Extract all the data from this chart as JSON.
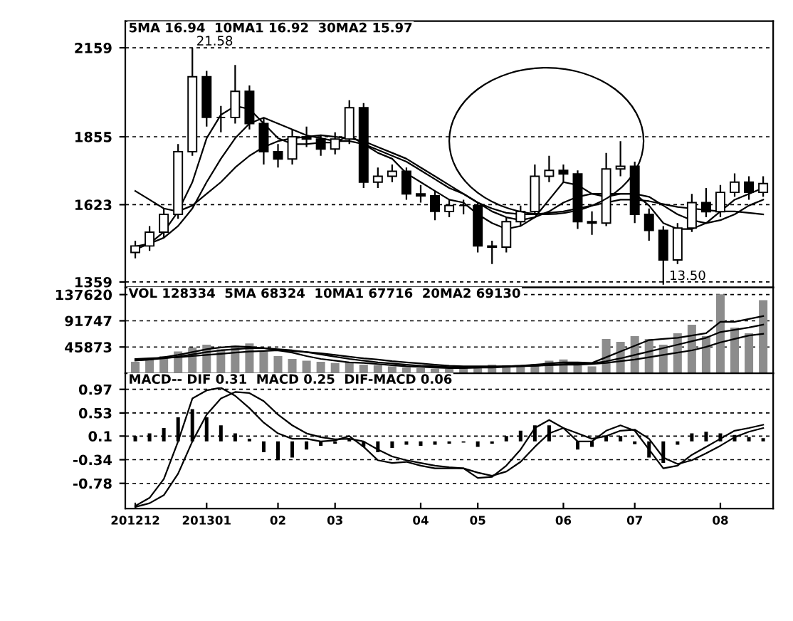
{
  "chart_data": [
    {
      "type": "candlestick",
      "tick_labels": "y",
      "grid": "y",
      "categories": [
        "201212",
        null,
        null,
        null,
        null,
        "201301",
        null,
        null,
        null,
        null,
        "02",
        null,
        null,
        null,
        "03",
        null,
        null,
        null,
        null,
        null,
        "04",
        null,
        null,
        null,
        "05",
        null,
        null,
        null,
        null,
        null,
        "06",
        null,
        null,
        null,
        null,
        "07",
        null,
        null,
        null,
        null,
        null,
        "08",
        null,
        null,
        null
      ],
      "ohlc": [
        [
          1460,
          1500,
          1440,
          1482
        ],
        [
          1482,
          1550,
          1465,
          1529
        ],
        [
          1529,
          1610,
          1510,
          1590
        ],
        [
          1590,
          1830,
          1575,
          1804
        ],
        [
          1804,
          2158,
          1790,
          2060
        ],
        [
          2060,
          2080,
          1890,
          1921
        ],
        [
          1921,
          1960,
          1870,
          1921
        ],
        [
          1921,
          2100,
          1900,
          2010
        ],
        [
          2010,
          2030,
          1880,
          1900
        ],
        [
          1900,
          1920,
          1760,
          1804
        ],
        [
          1804,
          1830,
          1750,
          1779
        ],
        [
          1779,
          1880,
          1760,
          1855
        ],
        [
          1855,
          1890,
          1820,
          1847
        ],
        [
          1847,
          1860,
          1790,
          1813
        ],
        [
          1813,
          1870,
          1795,
          1847
        ],
        [
          1847,
          1980,
          1830,
          1954
        ],
        [
          1954,
          1970,
          1680,
          1700
        ],
        [
          1700,
          1750,
          1680,
          1720
        ],
        [
          1720,
          1760,
          1700,
          1737
        ],
        [
          1737,
          1750,
          1640,
          1660
        ],
        [
          1660,
          1690,
          1630,
          1653
        ],
        [
          1653,
          1670,
          1570,
          1600
        ],
        [
          1600,
          1640,
          1580,
          1620
        ],
        [
          1620,
          1640,
          1590,
          1620
        ],
        [
          1620,
          1630,
          1460,
          1482
        ],
        [
          1482,
          1500,
          1420,
          1478
        ],
        [
          1478,
          1580,
          1460,
          1565
        ],
        [
          1565,
          1620,
          1550,
          1600
        ],
        [
          1600,
          1760,
          1590,
          1720
        ],
        [
          1720,
          1790,
          1700,
          1740
        ],
        [
          1740,
          1760,
          1700,
          1728
        ],
        [
          1728,
          1740,
          1540,
          1565
        ],
        [
          1565,
          1600,
          1520,
          1560
        ],
        [
          1560,
          1800,
          1550,
          1745
        ],
        [
          1745,
          1840,
          1720,
          1754
        ],
        [
          1754,
          1770,
          1560,
          1590
        ],
        [
          1590,
          1610,
          1500,
          1535
        ],
        [
          1535,
          1550,
          1350,
          1434
        ],
        [
          1434,
          1560,
          1420,
          1543
        ],
        [
          1543,
          1660,
          1530,
          1630
        ],
        [
          1630,
          1680,
          1580,
          1599
        ],
        [
          1599,
          1690,
          1580,
          1665
        ],
        [
          1665,
          1730,
          1650,
          1700
        ],
        [
          1700,
          1720,
          1640,
          1665
        ],
        [
          1665,
          1720,
          1650,
          1695
        ]
      ],
      "series": [
        {
          "type": "line",
          "color": "#000000",
          "values": [
            1470,
            1490,
            1530,
            1600,
            1700,
            1850,
            1930,
            1960,
            1950,
            1900,
            1850,
            1830,
            1830,
            1835,
            1835,
            1860,
            1830,
            1800,
            1780,
            1730,
            1700,
            1670,
            1640,
            1630,
            1590,
            1560,
            1540,
            1550,
            1580,
            1640,
            1700,
            1690,
            1660,
            1650,
            1660,
            1660,
            1620,
            1560,
            1540,
            1540,
            1560,
            1600,
            1640,
            1660,
            1680
          ]
        },
        {
          "type": "line",
          "color": "#000000",
          "values": [
            1480,
            1490,
            1510,
            1550,
            1610,
            1700,
            1780,
            1850,
            1900,
            1920,
            1900,
            1880,
            1860,
            1850,
            1840,
            1840,
            1830,
            1810,
            1790,
            1770,
            1740,
            1710,
            1680,
            1660,
            1630,
            1600,
            1580,
            1570,
            1580,
            1600,
            1630,
            1650,
            1660,
            1660,
            1660,
            1660,
            1650,
            1620,
            1590,
            1570,
            1560,
            1570,
            1590,
            1620,
            1640
          ]
        },
        {
          "type": "line",
          "color": "#000000",
          "values": [
            1670,
            1640,
            1610,
            1600,
            1620,
            1660,
            1700,
            1750,
            1790,
            1820,
            1840,
            1850,
            1855,
            1860,
            1855,
            1850,
            1840,
            1820,
            1800,
            1780,
            1750,
            1720,
            1690,
            1660,
            1630,
            1610,
            1595,
            1590,
            1590,
            1595,
            1600,
            1610,
            1620,
            1630,
            1640,
            1640,
            1635,
            1625,
            1615,
            1610,
            1605,
            1600,
            1600,
            1595,
            1590
          ]
        }
      ],
      "ylim": [
        1340,
        2250
      ],
      "yticks": [
        1359,
        1623,
        1855,
        2159
      ],
      "annotations": [
        "5MA 16.94  10MA1 16.92  30MA2 15.97",
        "21.58",
        "13.50"
      ]
    },
    {
      "type": "bar",
      "tick_labels": "y",
      "grid": "y",
      "categories": [
        "201212",
        null,
        null,
        null,
        null,
        "201301",
        null,
        null,
        null,
        null,
        "02",
        null,
        null,
        null,
        "03",
        null,
        null,
        null,
        null,
        null,
        "04",
        null,
        null,
        null,
        "05",
        null,
        null,
        null,
        null,
        null,
        "06",
        null,
        null,
        null,
        null,
        "07",
        null,
        null,
        null,
        null,
        null,
        "08",
        null,
        null,
        null
      ],
      "series": [
        {
          "type": "bar",
          "color": "#8c8c8c",
          "values": [
            20000,
            25000,
            30000,
            38000,
            45000,
            50000,
            42000,
            48000,
            52000,
            38000,
            30000,
            25000,
            22000,
            20000,
            18000,
            20000,
            15000,
            14000,
            12000,
            10000,
            9000,
            8000,
            8000,
            9000,
            12000,
            15000,
            14000,
            13000,
            16000,
            22000,
            24000,
            18000,
            12000,
            60000,
            55000,
            65000,
            60000,
            50000,
            70000,
            85000,
            65000,
            138000,
            80000,
            70000,
            128000
          ]
        },
        {
          "type": "line",
          "color": "#000000",
          "values": [
            22000,
            24000,
            28000,
            32000,
            37000,
            42000,
            45000,
            47000,
            46000,
            44000,
            40000,
            36000,
            30000,
            25000,
            22000,
            19000,
            18000,
            16000,
            14000,
            12000,
            11000,
            10000,
            9000,
            9000,
            10000,
            11000,
            12000,
            13000,
            15000,
            17000,
            19000,
            19000,
            18000,
            28000,
            38000,
            48000,
            58000,
            60000,
            62000,
            66000,
            70000,
            90000,
            90000,
            95000,
            100000
          ]
        },
        {
          "type": "line",
          "color": "#000000",
          "values": [
            23000,
            24000,
            26000,
            29000,
            33000,
            37000,
            40000,
            42000,
            44000,
            44000,
            42000,
            40000,
            37000,
            33000,
            29000,
            25000,
            22000,
            19000,
            17000,
            15000,
            13000,
            12000,
            11000,
            10000,
            10000,
            10000,
            11000,
            12000,
            13000,
            15000,
            16000,
            17000,
            17000,
            21000,
            26000,
            32000,
            38000,
            44000,
            50000,
            56000,
            62000,
            72000,
            76000,
            80000,
            85000
          ]
        },
        {
          "type": "line",
          "color": "#000000",
          "values": [
            25000,
            26000,
            27000,
            28000,
            30000,
            32000,
            34000,
            36000,
            38000,
            39000,
            40000,
            39000,
            37000,
            35000,
            32000,
            29000,
            26000,
            24000,
            21000,
            19000,
            17000,
            15000,
            13000,
            12000,
            12000,
            12000,
            12000,
            13000,
            13000,
            14000,
            15000,
            15000,
            16000,
            18000,
            21000,
            24000,
            28000,
            32000,
            36000,
            40000,
            46000,
            54000,
            60000,
            66000,
            69000
          ]
        }
      ],
      "ylim": [
        0,
        150000
      ],
      "yticks": [
        45873,
        91747,
        137620
      ],
      "annotations": [
        "VOL 128334  5MA 68324  10MA1 67716  20MA2 69130"
      ]
    },
    {
      "type": "bar",
      "grid": "y",
      "categories": [
        "201212",
        null,
        null,
        null,
        null,
        "201301",
        null,
        null,
        null,
        null,
        "02",
        null,
        null,
        null,
        "03",
        null,
        null,
        null,
        null,
        null,
        "04",
        null,
        null,
        null,
        "05",
        null,
        null,
        null,
        null,
        null,
        "06",
        null,
        null,
        null,
        null,
        "07",
        null,
        null,
        null,
        null,
        null,
        "08",
        null,
        null,
        null
      ],
      "series": [
        {
          "type": "bar",
          "color": "#000000",
          "values": [
            0.1,
            0.15,
            0.25,
            0.45,
            0.6,
            0.45,
            0.3,
            0.15,
            0.05,
            -0.2,
            -0.35,
            -0.3,
            -0.15,
            -0.08,
            -0.04,
            0.05,
            -0.1,
            -0.2,
            -0.12,
            -0.06,
            -0.08,
            -0.06,
            -0.04,
            -0.02,
            -0.1,
            -0.04,
            0.1,
            0.2,
            0.3,
            0.3,
            0.0,
            -0.15,
            -0.1,
            0.1,
            0.1,
            -0.05,
            -0.3,
            -0.4,
            -0.06,
            0.15,
            0.18,
            0.15,
            0.12,
            0.08,
            0.06
          ]
        },
        {
          "type": "line",
          "color": "#000000",
          "values": [
            -1.2,
            -1.05,
            -0.7,
            0.0,
            0.8,
            0.95,
            1.0,
            0.85,
            0.62,
            0.35,
            0.15,
            0.05,
            0.05,
            0.0,
            0.02,
            0.1,
            -0.1,
            -0.35,
            -0.4,
            -0.38,
            -0.45,
            -0.5,
            -0.5,
            -0.5,
            -0.68,
            -0.66,
            -0.45,
            -0.15,
            0.25,
            0.4,
            0.25,
            0.0,
            0.0,
            0.2,
            0.3,
            0.2,
            -0.15,
            -0.5,
            -0.45,
            -0.25,
            -0.1,
            0.05,
            0.2,
            0.25,
            0.31
          ]
        },
        {
          "type": "line",
          "color": "#000000",
          "values": [
            -1.22,
            -1.15,
            -1.0,
            -0.6,
            0.0,
            0.5,
            0.8,
            0.92,
            0.9,
            0.75,
            0.5,
            0.3,
            0.15,
            0.08,
            0.04,
            0.05,
            0.0,
            -0.15,
            -0.28,
            -0.35,
            -0.4,
            -0.45,
            -0.48,
            -0.5,
            -0.58,
            -0.64,
            -0.56,
            -0.38,
            -0.1,
            0.15,
            0.25,
            0.15,
            0.05,
            0.1,
            0.2,
            0.22,
            0.05,
            -0.3,
            -0.42,
            -0.35,
            -0.22,
            -0.08,
            0.08,
            0.18,
            0.25
          ]
        }
      ],
      "ylim": [
        -1.25,
        1.27
      ],
      "yticks": [
        -0.78,
        -0.34,
        0.1,
        0.53,
        0.97
      ],
      "annotations": [
        "MACD-- DIF 0.31  MACD 0.25  DIF-MACD 0.06"
      ]
    }
  ]
}
